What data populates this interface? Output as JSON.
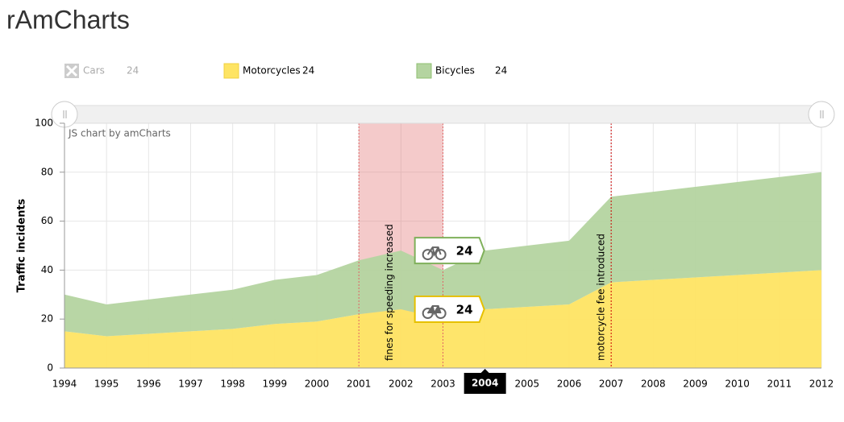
{
  "chart_data": {
    "type": "area",
    "stacked": true,
    "title": "rAmCharts",
    "credit": "JS chart by amCharts",
    "y_label": "Traffic incidents",
    "x": [
      1994,
      1995,
      1996,
      1997,
      1998,
      1999,
      2000,
      2001,
      2002,
      2003,
      2004,
      2005,
      2006,
      2007,
      2008,
      2009,
      2010,
      2011,
      2012
    ],
    "xlim": [
      1994,
      2012
    ],
    "xticks": [
      1994,
      1995,
      1996,
      1997,
      1998,
      1999,
      2000,
      2001,
      2002,
      2003,
      2004,
      2005,
      2006,
      2007,
      2008,
      2009,
      2010,
      2011,
      2012
    ],
    "ylim": [
      0,
      100
    ],
    "yticks": [
      0,
      20,
      40,
      60,
      80,
      100
    ],
    "grid": true,
    "series": [
      {
        "name": "Cars",
        "hidden": true,
        "legend_value": 24
      },
      {
        "name": "Motorcycles",
        "color": "#fee463",
        "legend_value": 24,
        "values": [
          15,
          13,
          14,
          15,
          16,
          18,
          19,
          22,
          24,
          20,
          24,
          25,
          26,
          35,
          36,
          37,
          38,
          39,
          40
        ]
      },
      {
        "name": "Bicycles",
        "color": "#b4d4a0",
        "legend_value": 24,
        "values": [
          15,
          13,
          14,
          15,
          16,
          18,
          19,
          22,
          24,
          20,
          24,
          25,
          26,
          35,
          36,
          37,
          38,
          39,
          40
        ]
      }
    ],
    "guides": [
      {
        "from": 2001,
        "to": 2003,
        "label": "fines for speeding increased",
        "color": "#e06666"
      },
      {
        "from": 2007,
        "label": "motorcycle fee introduced",
        "color": "#cc0000"
      }
    ],
    "cursor": {
      "x": 2004,
      "index": 10
    }
  }
}
